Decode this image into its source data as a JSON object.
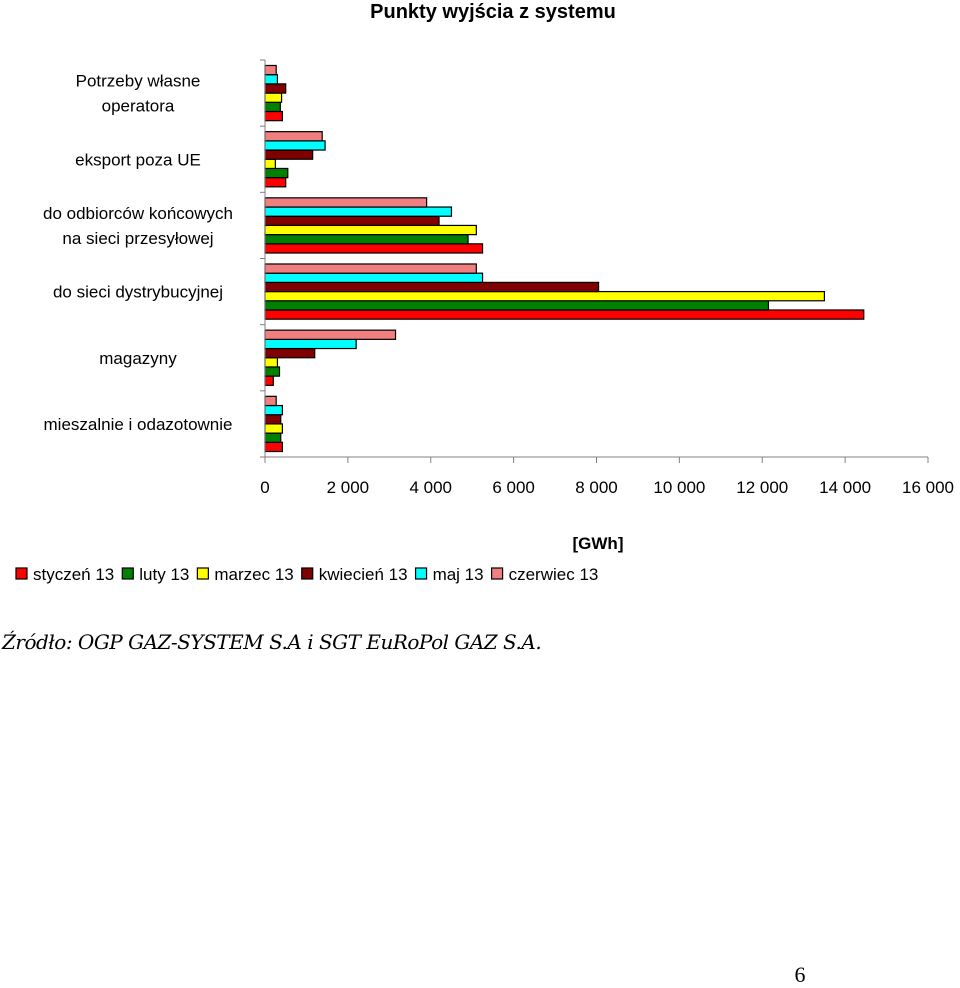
{
  "chart_data": {
    "type": "bar",
    "orientation": "horizontal",
    "title": "Punkty wyjścia z systemu",
    "xlabel": "[GWh]",
    "ylabel": "",
    "xlim": [
      0,
      16000
    ],
    "xticks": [
      0,
      2000,
      4000,
      6000,
      8000,
      10000,
      12000,
      14000,
      16000
    ],
    "xtick_labels": [
      "0",
      "2 000",
      "4 000",
      "6 000",
      "8 000",
      "10 000",
      "12 000",
      "14 000",
      "16 000"
    ],
    "grid": false,
    "legend_position": "bottom",
    "categories": [
      [
        "Potrzeby własne",
        "operatora"
      ],
      [
        "eksport poza UE"
      ],
      [
        "do odbiorców końcowych",
        "na sieci przesyłowej"
      ],
      [
        "do sieci dystrybucyjnej"
      ],
      [
        "magazyny"
      ],
      [
        "mieszalnie i odazotownie"
      ]
    ],
    "series": [
      {
        "name": "styczeń 13",
        "color": "#ff0000",
        "values": [
          420,
          500,
          5250,
          14450,
          200,
          420
        ]
      },
      {
        "name": "luty 13",
        "color": "#008000",
        "values": [
          370,
          550,
          4900,
          12150,
          350,
          380
        ]
      },
      {
        "name": "marzec 13",
        "color": "#ffff00",
        "values": [
          400,
          250,
          5100,
          13500,
          300,
          420
        ]
      },
      {
        "name": "kwiecień 13",
        "color": "#800000",
        "values": [
          500,
          1150,
          4200,
          8050,
          1200,
          380
        ]
      },
      {
        "name": "maj 13",
        "color": "#00ffff",
        "values": [
          300,
          1450,
          4500,
          5250,
          2200,
          420
        ]
      },
      {
        "name": "czerwiec 13",
        "color": "#f08080",
        "values": [
          270,
          1380,
          3900,
          5100,
          3150,
          270
        ]
      }
    ]
  },
  "source_note": "Źródło: OGP GAZ-SYSTEM S.A i SGT EuRoPol GAZ S.A.",
  "page_number": "6"
}
